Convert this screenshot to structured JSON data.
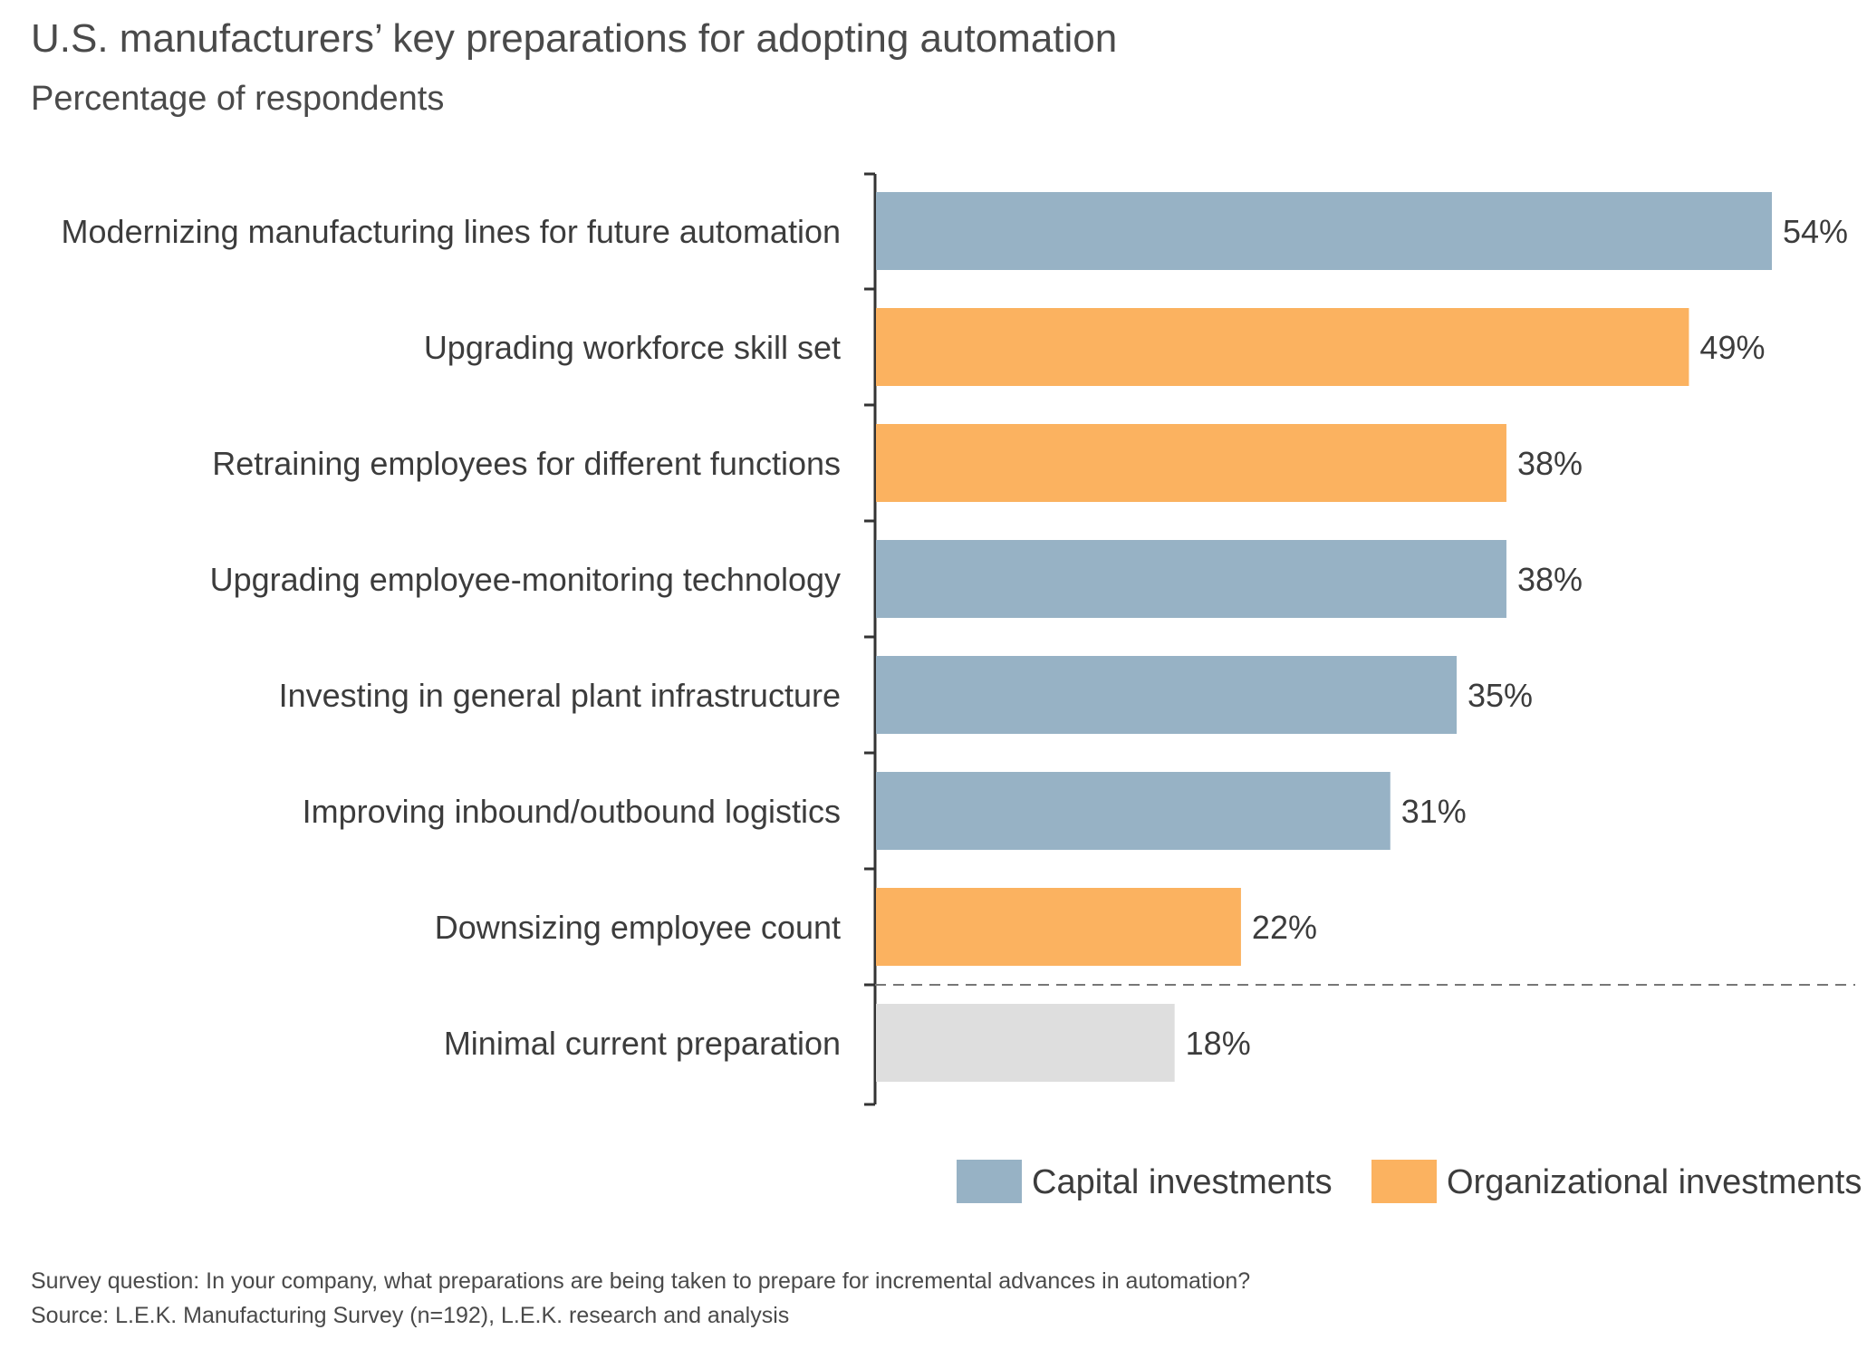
{
  "chart_data": {
    "type": "bar",
    "orientation": "horizontal",
    "title": "U.S. manufacturers’ key preparations for adopting automation",
    "subtitle": "Percentage of respondents",
    "categories": [
      "Modernizing manufacturing lines for future automation",
      "Upgrading workforce skill set",
      "Retraining employees for different functions",
      "Upgrading employee-monitoring technology",
      "Investing in general plant infrastructure",
      "Improving inbound/outbound logistics",
      "Downsizing employee count",
      "Minimal current preparation"
    ],
    "values": [
      54,
      49,
      38,
      38,
      35,
      31,
      22,
      18
    ],
    "value_labels": [
      "54%",
      "49%",
      "38%",
      "38%",
      "35%",
      "31%",
      "22%",
      "18%"
    ],
    "groups": [
      "capital",
      "organizational",
      "organizational",
      "capital",
      "capital",
      "capital",
      "organizational",
      "none"
    ],
    "xlim": [
      0,
      54
    ],
    "grid": false,
    "separator_before_last": true,
    "legend": {
      "placement": "bottom-right",
      "items": [
        {
          "key": "capital",
          "label": "Capital investments",
          "color": "#97b2c5"
        },
        {
          "key": "organizational",
          "label": "Organizational investments",
          "color": "#fbb260"
        }
      ]
    },
    "colors": {
      "capital": "#97b2c5",
      "organizational": "#fbb260",
      "none": "#dedede"
    }
  },
  "footnotes": {
    "question": "Survey question: In your company, what preparations are being taken to prepare for incremental advances in automation?",
    "source": "Source: L.E.K. Manufacturing Survey (n=192), L.E.K. research and analysis"
  }
}
